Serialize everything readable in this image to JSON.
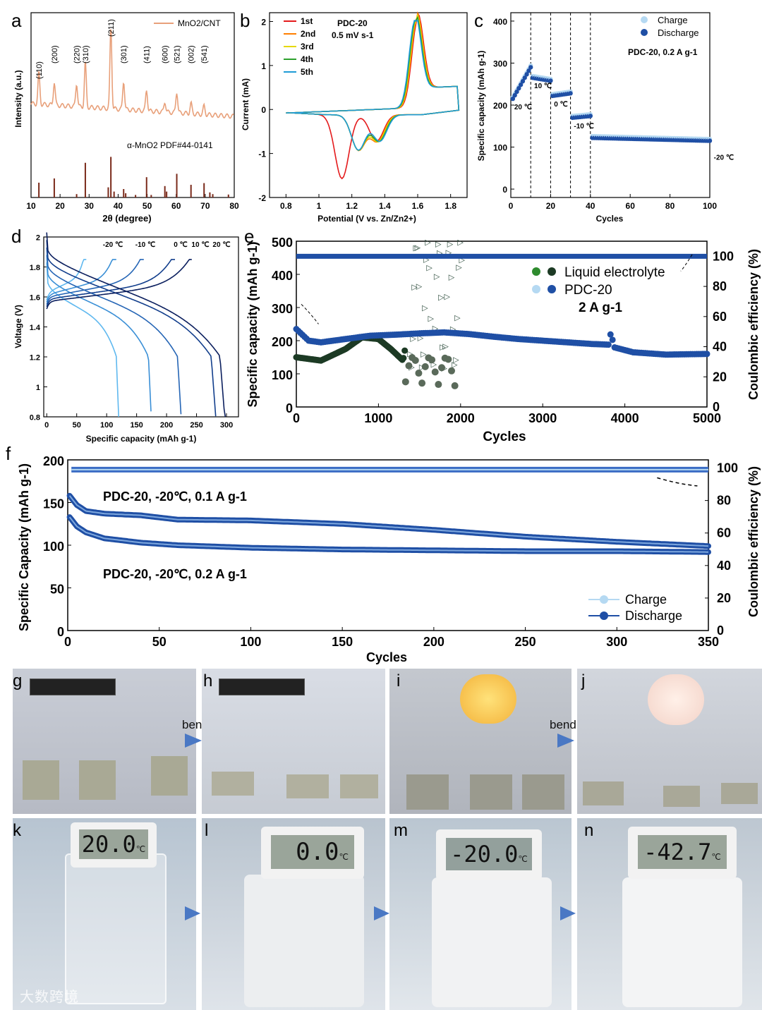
{
  "labels": {
    "a": "a",
    "b": "b",
    "c": "c",
    "d": "d",
    "e": "e",
    "f": "f",
    "g": "g",
    "h": "h",
    "i": "i",
    "j": "j",
    "k": "k",
    "l": "l",
    "m": "m",
    "n": "n"
  },
  "photos": {
    "bending_h": "bending",
    "bending_j": "bending",
    "display_k": "20.0",
    "display_l": "0.0",
    "display_m": "-20.0",
    "display_n": "-42.7",
    "unit": "℃",
    "watermark": "大数跨境"
  },
  "chart_data": [
    {
      "id": "a",
      "type": "line",
      "xlabel": "2θ (degree)",
      "ylabel": "Intensity (a.u.)",
      "xlim": [
        10,
        80
      ],
      "xticks": [
        10,
        20,
        30,
        40,
        50,
        60,
        70,
        80
      ],
      "legend": "MnO2/CNT",
      "legend_pos": "top-right",
      "reference_label": "α-MnO2 PDF#44-0141",
      "peaks": [
        {
          "label": "(110)",
          "x": 12.7
        },
        {
          "label": "(200)",
          "x": 18.0
        },
        {
          "label": "(220)",
          "x": 25.7
        },
        {
          "label": "(310)",
          "x": 28.7
        },
        {
          "label": "(211)",
          "x": 37.5
        },
        {
          "label": "(301)",
          "x": 41.9
        },
        {
          "label": "(411)",
          "x": 49.8
        },
        {
          "label": "(600)",
          "x": 56.1
        },
        {
          "label": "(521)",
          "x": 60.2
        },
        {
          "label": "(002)",
          "x": 65.1
        },
        {
          "label": "(541)",
          "x": 69.6
        }
      ],
      "reference_sticks": [
        [
          12.7,
          0.35
        ],
        [
          18.0,
          0.45
        ],
        [
          25.7,
          0.08
        ],
        [
          28.7,
          0.82
        ],
        [
          36.6,
          0.24
        ],
        [
          37.5,
          0.96
        ],
        [
          38.6,
          0.14
        ],
        [
          41.9,
          0.2
        ],
        [
          42.6,
          0.1
        ],
        [
          46.0,
          0.06
        ],
        [
          49.8,
          0.48
        ],
        [
          51.4,
          0.06
        ],
        [
          56.1,
          0.27
        ],
        [
          56.7,
          0.14
        ],
        [
          60.2,
          0.56
        ],
        [
          65.1,
          0.3
        ],
        [
          69.6,
          0.34
        ],
        [
          71.6,
          0.12
        ],
        [
          72.6,
          0.08
        ],
        [
          78.0,
          0.07
        ]
      ]
    },
    {
      "id": "b",
      "type": "line",
      "xlabel": "Potential (V vs. Zn/Zn2+)",
      "ylabel": "Current (mA)",
      "xlim": [
        0.7,
        1.9
      ],
      "ylim": [
        -2,
        2.2
      ],
      "xticks": [
        0.8,
        1.0,
        1.2,
        1.4,
        1.6,
        1.8
      ],
      "yticks": [
        -2,
        -1,
        0,
        1,
        2
      ],
      "annotation": [
        "PDC-20",
        "0.5 mV s-1"
      ],
      "series": [
        {
          "name": "1st",
          "color": "#e41a1c",
          "shift": 0
        },
        {
          "name": "2nd",
          "color": "#ff7f00",
          "shift": 1
        },
        {
          "name": "3rd",
          "color": "#e6d800",
          "shift": 2
        },
        {
          "name": "4th",
          "color": "#2ca02c",
          "shift": 3
        },
        {
          "name": "5th",
          "color": "#1f9bd6",
          "shift": 4
        }
      ]
    },
    {
      "id": "c",
      "type": "scatter",
      "xlabel": "Cycles",
      "ylabel": "Specific capacity (mAh g-1)",
      "xlim": [
        0,
        100
      ],
      "ylim": [
        -20,
        420
      ],
      "xticks": [
        0,
        20,
        40,
        60,
        80,
        100
      ],
      "yticks": [
        0,
        100,
        200,
        300,
        400
      ],
      "legend": [
        "Charge",
        "Discharge"
      ],
      "annotation": "PDC-20, 0.2 A g-1",
      "segments": [
        {
          "label": "20 ℃",
          "from": 1,
          "to": 10,
          "start": 215,
          "end": 290
        },
        {
          "label": "10 ℃",
          "from": 11,
          "to": 20,
          "start": 265,
          "end": 258
        },
        {
          "label": "0 ℃",
          "from": 21,
          "to": 30,
          "start": 222,
          "end": 228
        },
        {
          "label": "-10 ℃",
          "from": 31,
          "to": 40,
          "start": 170,
          "end": 174
        },
        {
          "label": "-20 ℃",
          "from": 41,
          "to": 100,
          "start": 122,
          "end": 115
        }
      ],
      "dividers": [
        10,
        20,
        30,
        40
      ]
    },
    {
      "id": "d",
      "type": "line",
      "xlabel": "Specific capacity (mAh g-1)",
      "ylabel": "Voltage (V)",
      "xlim": [
        -5,
        320
      ],
      "ylim": [
        0.8,
        2.0
      ],
      "xticks": [
        0,
        50,
        100,
        150,
        200,
        250,
        300
      ],
      "yticks": [
        0.8,
        1.0,
        1.2,
        1.4,
        1.6,
        1.8,
        2.0
      ],
      "series": [
        {
          "name": "-20 ℃",
          "color": "#5fb8ef",
          "cap": 120
        },
        {
          "name": "-10 ℃",
          "color": "#3a8fd6",
          "cap": 175
        },
        {
          "name": "0 ℃",
          "color": "#2565b5",
          "cap": 225
        },
        {
          "name": "10 ℃",
          "color": "#123e8c",
          "cap": 283
        },
        {
          "name": "20 ℃",
          "color": "#0b1f5e",
          "cap": 298
        }
      ]
    },
    {
      "id": "e",
      "type": "scatter",
      "xlabel": "Cycles",
      "ylabel": "Specific capacity (mAh g-1)",
      "y2label": "Coulombic efficiency (%)",
      "xlim": [
        0,
        5000
      ],
      "ylim": [
        0,
        500
      ],
      "y2lim": [
        0,
        110
      ],
      "xticks": [
        0,
        1000,
        2000,
        3000,
        4000,
        5000
      ],
      "yticks": [
        0,
        100,
        200,
        300,
        400,
        500
      ],
      "y2ticks": [
        0,
        20,
        40,
        60,
        80,
        100
      ],
      "legend": [
        "Liquid electrolyte",
        "PDC-20"
      ],
      "annotation": "2 A g-1",
      "pdc_capacity": [
        [
          0,
          235
        ],
        [
          150,
          200
        ],
        [
          300,
          195
        ],
        [
          600,
          205
        ],
        [
          900,
          215
        ],
        [
          1200,
          218
        ],
        [
          1500,
          222
        ],
        [
          1800,
          225
        ],
        [
          2100,
          220
        ],
        [
          2400,
          212
        ],
        [
          2700,
          205
        ],
        [
          3000,
          200
        ],
        [
          3300,
          195
        ],
        [
          3600,
          190
        ],
        [
          3800,
          188
        ],
        [
          3830,
          225
        ],
        [
          3870,
          180
        ],
        [
          4100,
          165
        ],
        [
          4500,
          158
        ],
        [
          5000,
          160
        ]
      ],
      "liquid_capacity": [
        [
          0,
          150
        ],
        [
          300,
          140
        ],
        [
          600,
          175
        ],
        [
          800,
          210
        ],
        [
          1000,
          205
        ],
        [
          1150,
          175
        ],
        [
          1300,
          140
        ],
        [
          1330,
          185
        ]
      ],
      "pdc_ce": 100
    },
    {
      "id": "f",
      "type": "scatter",
      "xlabel": "Cycles",
      "ylabel": "Specific Capacity (mAh g-1)",
      "y2label": "Coulombic efficiency (%)",
      "xlim": [
        0,
        350
      ],
      "ylim": [
        0,
        200
      ],
      "y2lim": [
        0,
        105
      ],
      "xticks": [
        0,
        50,
        100,
        150,
        200,
        250,
        300,
        350
      ],
      "yticks": [
        0,
        50,
        100,
        150,
        200
      ],
      "y2ticks": [
        0,
        20,
        40,
        60,
        80,
        100
      ],
      "legend": [
        "Charge",
        "Discharge"
      ],
      "annotations": [
        "PDC-20, -20℃, 0.1 A g-1",
        "PDC-20, -20℃, 0.2 A g-1"
      ],
      "series": [
        {
          "name": "0.1 A g-1",
          "points": [
            [
              1,
              158
            ],
            [
              5,
              147
            ],
            [
              10,
              140
            ],
            [
              20,
              137
            ],
            [
              40,
              135
            ],
            [
              60,
              130
            ],
            [
              100,
              129
            ],
            [
              150,
              125
            ],
            [
              200,
              118
            ],
            [
              250,
              110
            ],
            [
              300,
              104
            ],
            [
              350,
              99
            ]
          ]
        },
        {
          "name": "0.2 A g-1",
          "points": [
            [
              1,
              133
            ],
            [
              5,
              122
            ],
            [
              10,
              115
            ],
            [
              20,
              108
            ],
            [
              40,
              103
            ],
            [
              60,
              100
            ],
            [
              100,
              97
            ],
            [
              150,
              95
            ],
            [
              200,
              94
            ],
            [
              250,
              93
            ],
            [
              300,
              93
            ],
            [
              350,
              92
            ]
          ]
        }
      ],
      "ce": 99
    }
  ]
}
